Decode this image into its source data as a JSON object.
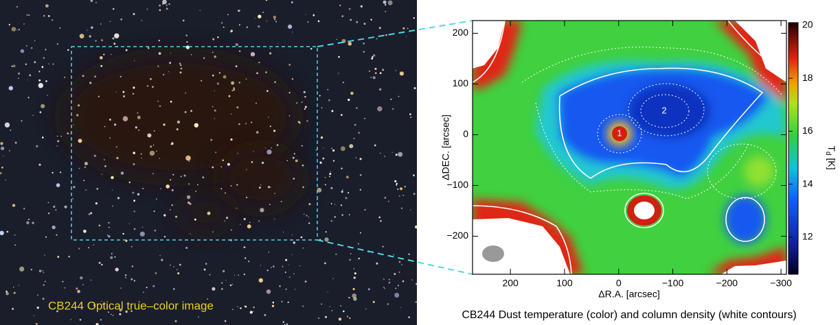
{
  "left_panel": {
    "caption": "CB244 Optical true–color image"
  },
  "right_panel": {
    "caption": "CB244 Dust temperature (color) and column density (white contours)",
    "xlabel": "ΔR.A. [arcsec]",
    "ylabel": "ΔDEC. [arcsec]",
    "colorbar_label": {
      "symbol": "T",
      "subscript": "d",
      "unit": "[K]"
    },
    "xlim": [
      270,
      -310
    ],
    "ylim": [
      -275,
      225
    ],
    "xticks": [
      200,
      100,
      0,
      {
        "value": -100,
        "label": "−100"
      },
      {
        "value": -200,
        "label": "−200"
      },
      {
        "value": -300,
        "label": "−300"
      }
    ],
    "yticks": [
      200,
      100,
      0,
      {
        "value": -100,
        "label": "−100"
      },
      {
        "value": -200,
        "label": "−200"
      }
    ],
    "colorbar_lim": [
      10.6,
      20.1
    ],
    "colorbar_ticks": [
      20,
      18,
      16,
      14,
      12
    ],
    "markers": [
      "1",
      "2"
    ]
  }
}
